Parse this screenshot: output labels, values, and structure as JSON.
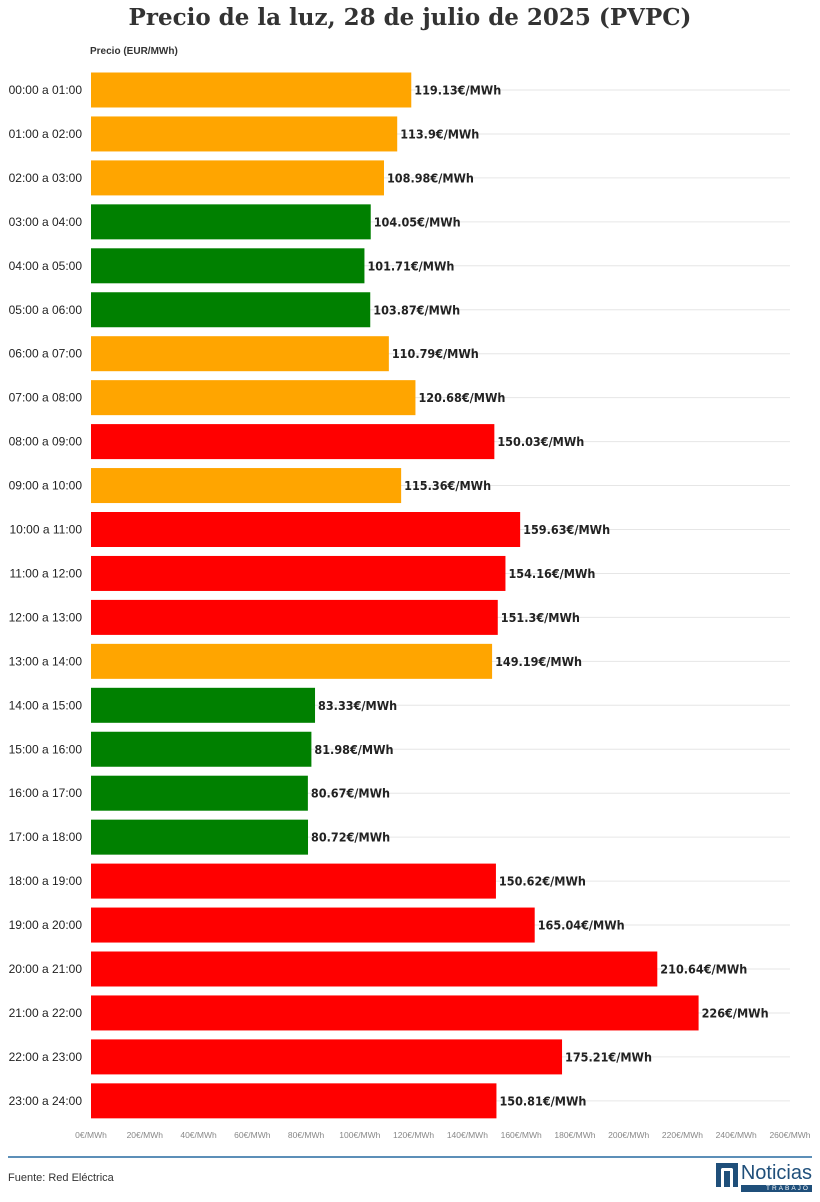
{
  "chart_data": {
    "type": "bar",
    "orientation": "horizontal",
    "title": "Precio de la luz, 28 de julio de 2025 (PVPC)",
    "ylabel": "Precio (EUR/MWh)",
    "xlim": [
      0,
      260
    ],
    "x_ticks": [
      "0€/MWh",
      "20€/MWh",
      "40€/MWh",
      "60€/MWh",
      "80€/MWh",
      "100€/MWh",
      "120€/MWh",
      "140€/MWh",
      "160€/MWh",
      "180€/MWh",
      "200€/MWh",
      "220€/MWh",
      "240€/MWh",
      "260€/MWh"
    ],
    "grid": true,
    "categories": [
      "00:00 a 01:00",
      "01:00 a 02:00",
      "02:00 a 03:00",
      "03:00 a 04:00",
      "04:00 a 05:00",
      "05:00 a 06:00",
      "06:00 a 07:00",
      "07:00 a 08:00",
      "08:00 a 09:00",
      "09:00 a 10:00",
      "10:00 a 11:00",
      "11:00 a 12:00",
      "12:00 a 13:00",
      "13:00 a 14:00",
      "14:00 a 15:00",
      "15:00 a 16:00",
      "16:00 a 17:00",
      "17:00 a 18:00",
      "18:00 a 19:00",
      "19:00 a 20:00",
      "20:00 a 21:00",
      "21:00 a 22:00",
      "22:00 a 23:00",
      "23:00 a 24:00"
    ],
    "values": [
      119.13,
      113.9,
      108.98,
      104.05,
      101.71,
      103.87,
      110.79,
      120.68,
      150.03,
      115.36,
      159.63,
      154.16,
      151.3,
      149.19,
      83.33,
      81.98,
      80.67,
      80.72,
      150.62,
      165.04,
      210.64,
      226,
      175.21,
      150.81
    ],
    "value_labels": [
      "119.13€/MWh",
      "113.9€/MWh",
      "108.98€/MWh",
      "104.05€/MWh",
      "101.71€/MWh",
      "103.87€/MWh",
      "110.79€/MWh",
      "120.68€/MWh",
      "150.03€/MWh",
      "115.36€/MWh",
      "159.63€/MWh",
      "154.16€/MWh",
      "151.3€/MWh",
      "149.19€/MWh",
      "83.33€/MWh",
      "81.98€/MWh",
      "80.67€/MWh",
      "80.72€/MWh",
      "150.62€/MWh",
      "165.04€/MWh",
      "210.64€/MWh",
      "226€/MWh",
      "175.21€/MWh",
      "150.81€/MWh"
    ],
    "bar_colors": [
      "orange",
      "orange",
      "orange",
      "green",
      "green",
      "green",
      "orange",
      "orange",
      "red",
      "orange",
      "red",
      "red",
      "red",
      "orange",
      "green",
      "green",
      "green",
      "green",
      "red",
      "red",
      "red",
      "red",
      "red",
      "red"
    ],
    "palette": {
      "orange": "#ffa500",
      "green": "#008000",
      "red": "#ff0000",
      "grid": "#e6e6e6"
    }
  },
  "footer": {
    "source": "Fuente: Red Eléctrica",
    "logo_main": "Noticias",
    "logo_sub": "TRABAJO"
  }
}
